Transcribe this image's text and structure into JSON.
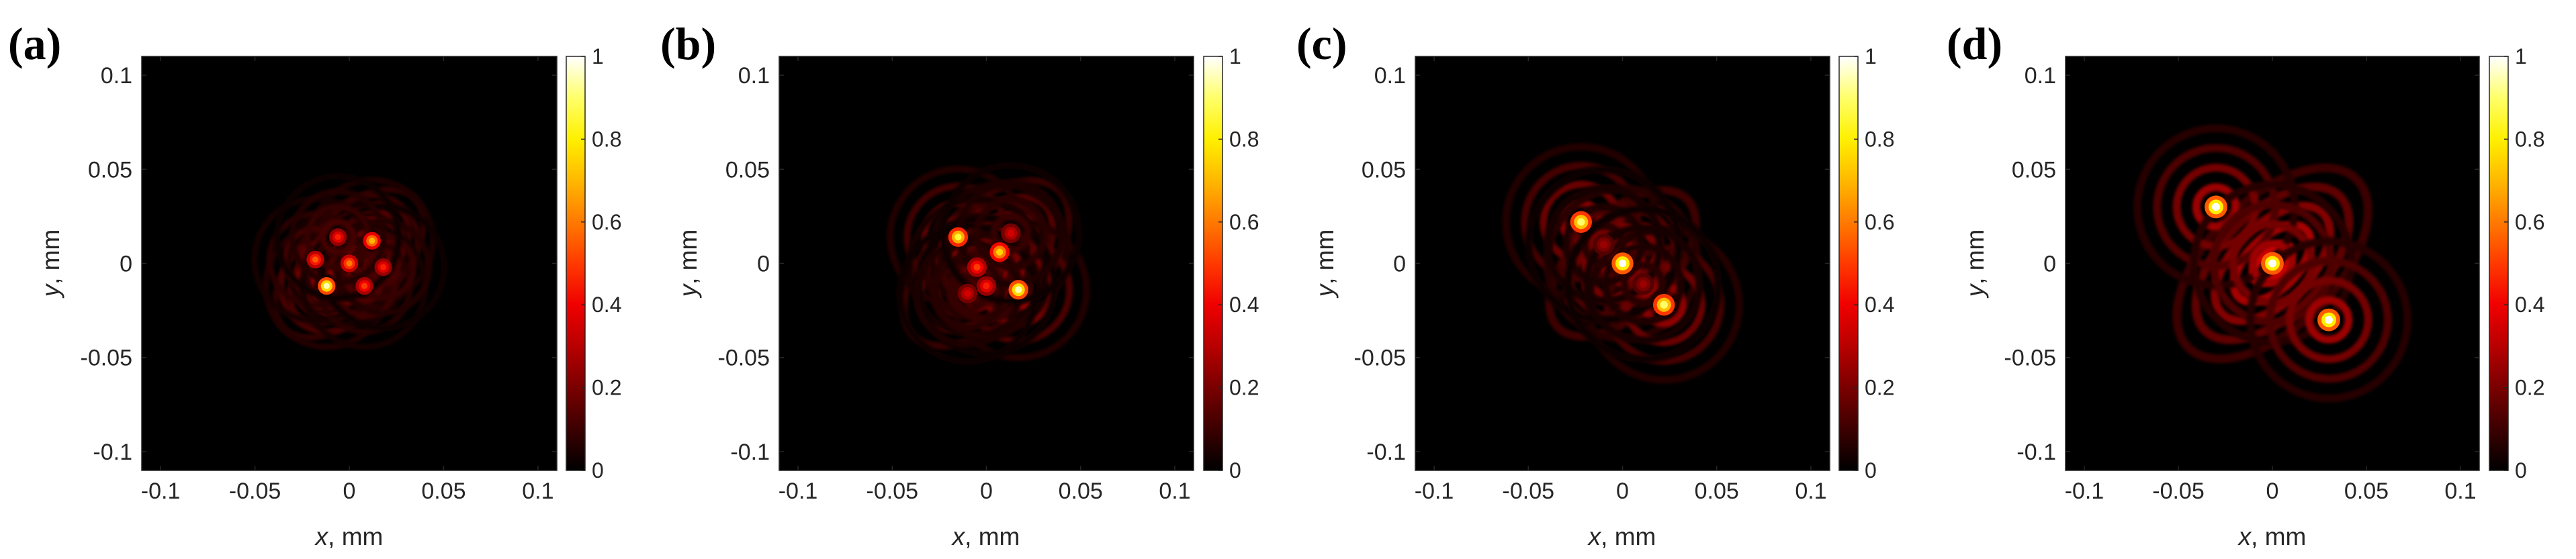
{
  "colormap": {
    "name": "hot",
    "stops": [
      "#000000",
      "#3c0000",
      "#7a0000",
      "#b80000",
      "#f00000",
      "#ff3a00",
      "#ff7a00",
      "#ffb800",
      "#fff000",
      "#ffff6a",
      "#ffffff"
    ]
  },
  "chart_data": [
    {
      "type": "heatmap",
      "panel_label": "(a)",
      "xlabel_var": "x",
      "xlabel_unit": ", mm",
      "ylabel_var": "y",
      "ylabel_unit": ", mm",
      "xlim": [
        -0.11,
        0.11
      ],
      "ylim": [
        -0.11,
        0.11
      ],
      "xticks": [
        -0.1,
        -0.05,
        0,
        0.05,
        0.1
      ],
      "xtick_labels": [
        "-0.1",
        "-0.05",
        "0",
        "0.05",
        "0.1"
      ],
      "yticks": [
        0.1,
        0.05,
        0,
        -0.05,
        -0.1
      ],
      "ytick_labels": [
        "0.1",
        "0.05",
        "0",
        "-0.05",
        "-0.1"
      ],
      "colorbar_ticks": [
        0,
        0.2,
        0.4,
        0.6,
        0.8,
        1
      ],
      "colorbar_labels": [
        "0",
        "0.2",
        "0.4",
        "0.6",
        "0.8",
        "1"
      ],
      "clim": [
        0,
        1
      ],
      "peaks": [
        {
          "x": -0.012,
          "y": -0.012,
          "intensity": 0.95
        },
        {
          "x": 0.0,
          "y": 0.0,
          "intensity": 0.6
        },
        {
          "x": 0.012,
          "y": 0.012,
          "intensity": 0.7
        },
        {
          "x": -0.018,
          "y": 0.002,
          "intensity": 0.55
        },
        {
          "x": 0.008,
          "y": -0.012,
          "intensity": 0.5
        },
        {
          "x": 0.018,
          "y": -0.002,
          "intensity": 0.45
        },
        {
          "x": -0.006,
          "y": 0.014,
          "intensity": 0.45
        }
      ],
      "envelope": {
        "radius": 0.045,
        "ring_period": 0.0085,
        "ring_strength": 0.22,
        "tilt": "diagonal"
      }
    },
    {
      "type": "heatmap",
      "panel_label": "(b)",
      "xlabel_var": "x",
      "xlabel_unit": ", mm",
      "ylabel_var": "y",
      "ylabel_unit": ", mm",
      "xlim": [
        -0.11,
        0.11
      ],
      "ylim": [
        -0.11,
        0.11
      ],
      "xticks": [
        -0.1,
        -0.05,
        0,
        0.05,
        0.1
      ],
      "xtick_labels": [
        "-0.1",
        "-0.05",
        "0",
        "0.05",
        "0.1"
      ],
      "yticks": [
        0.1,
        0.05,
        0,
        -0.05,
        -0.1
      ],
      "ytick_labels": [
        "0.1",
        "0.05",
        "0",
        "-0.05",
        "-0.1"
      ],
      "colorbar_ticks": [
        0,
        0.2,
        0.4,
        0.6,
        0.8,
        1
      ],
      "colorbar_labels": [
        "0",
        "0.2",
        "0.4",
        "0.6",
        "0.8",
        "1"
      ],
      "clim": [
        0,
        1
      ],
      "peaks": [
        {
          "x": -0.015,
          "y": 0.014,
          "intensity": 0.85
        },
        {
          "x": 0.007,
          "y": 0.006,
          "intensity": 0.75
        },
        {
          "x": 0.017,
          "y": -0.014,
          "intensity": 0.95
        },
        {
          "x": -0.005,
          "y": -0.002,
          "intensity": 0.5
        },
        {
          "x": 0.0,
          "y": -0.012,
          "intensity": 0.45
        },
        {
          "x": -0.01,
          "y": -0.016,
          "intensity": 0.35
        },
        {
          "x": 0.013,
          "y": 0.016,
          "intensity": 0.35
        }
      ],
      "envelope": {
        "radius": 0.05,
        "ring_period": 0.0095,
        "ring_strength": 0.28,
        "tilt": "diagonal"
      }
    },
    {
      "type": "heatmap",
      "panel_label": "(c)",
      "xlabel_var": "x",
      "xlabel_unit": ", mm",
      "ylabel_var": "y",
      "ylabel_unit": ", mm",
      "xlim": [
        -0.11,
        0.11
      ],
      "ylim": [
        -0.11,
        0.11
      ],
      "xticks": [
        -0.1,
        -0.05,
        0,
        0.05,
        0.1
      ],
      "xtick_labels": [
        "-0.1",
        "-0.05",
        "0",
        "0.05",
        "0.1"
      ],
      "yticks": [
        0.1,
        0.05,
        0,
        -0.05,
        -0.1
      ],
      "ytick_labels": [
        "0.1",
        "0.05",
        "0",
        "-0.05",
        "-0.1"
      ],
      "colorbar_ticks": [
        0,
        0.2,
        0.4,
        0.6,
        0.8,
        1
      ],
      "colorbar_labels": [
        "0",
        "0.2",
        "0.4",
        "0.6",
        "0.8",
        "1"
      ],
      "clim": [
        0,
        1
      ],
      "peaks": [
        {
          "x": -0.022,
          "y": 0.022,
          "intensity": 0.9
        },
        {
          "x": 0.0,
          "y": 0.0,
          "intensity": 1.0
        },
        {
          "x": 0.022,
          "y": -0.022,
          "intensity": 0.9
        },
        {
          "x": -0.01,
          "y": 0.01,
          "intensity": 0.25
        },
        {
          "x": 0.011,
          "y": -0.011,
          "intensity": 0.25
        }
      ],
      "envelope": {
        "radius": 0.05,
        "ring_period": 0.0105,
        "ring_strength": 0.3,
        "tilt": "diagonal"
      }
    },
    {
      "type": "heatmap",
      "panel_label": "(d)",
      "xlabel_var": "x",
      "xlabel_unit": ", mm",
      "ylabel_var": "y",
      "ylabel_unit": ", mm",
      "xlim": [
        -0.11,
        0.11
      ],
      "ylim": [
        -0.11,
        0.11
      ],
      "xticks": [
        -0.1,
        -0.05,
        0,
        0.05,
        0.1
      ],
      "xtick_labels": [
        "-0.1",
        "-0.05",
        "0",
        "0.05",
        "0.1"
      ],
      "yticks": [
        0.1,
        0.05,
        0,
        -0.05,
        -0.1
      ],
      "ytick_labels": [
        "0.1",
        "0.05",
        "0",
        "-0.05",
        "-0.1"
      ],
      "colorbar_ticks": [
        0,
        0.2,
        0.4,
        0.6,
        0.8,
        1
      ],
      "colorbar_labels": [
        "0",
        "0.2",
        "0.4",
        "0.6",
        "0.8",
        "1"
      ],
      "clim": [
        0,
        1
      ],
      "peaks": [
        {
          "x": -0.03,
          "y": 0.03,
          "intensity": 1.0
        },
        {
          "x": 0.0,
          "y": 0.0,
          "intensity": 1.0
        },
        {
          "x": 0.03,
          "y": -0.03,
          "intensity": 1.0
        }
      ],
      "envelope": {
        "radius": 0.055,
        "ring_period": 0.011,
        "ring_strength": 0.35,
        "tilt": "diagonal"
      }
    }
  ]
}
